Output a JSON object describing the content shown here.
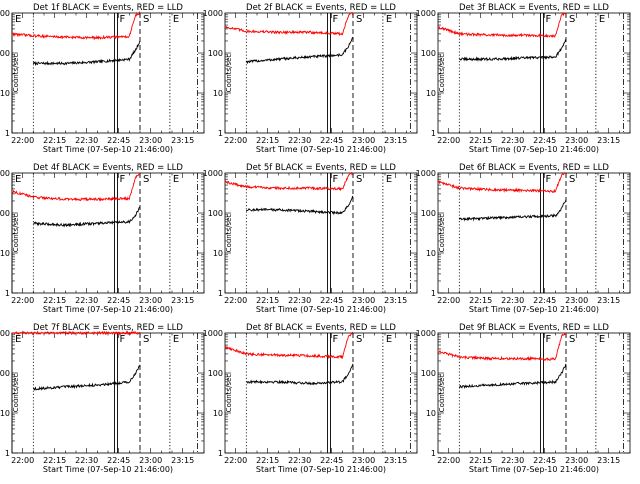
{
  "chart_data": [
    {
      "type": "line",
      "title": "Det 1f BLACK = Events, RED = LLD",
      "xlabel": "Start Time (07-Sep-10 21:46:00)",
      "ylabel": "Counts/sec",
      "xlim": [
        "21:55",
        "23:25"
      ],
      "ylim": [
        1,
        1000
      ],
      "yscale": "log",
      "xticks": [
        "22:00",
        "22:15",
        "22:30",
        "22:45",
        "23:00",
        "23:15"
      ],
      "yticks": [
        "1",
        "10",
        "100",
        "1000"
      ],
      "markers": [
        {
          "label": "E",
          "time": "21:55",
          "style": "solid"
        },
        {
          "label": "F",
          "time": "22:44",
          "style": "solid"
        },
        {
          "label": "S",
          "time": "22:55",
          "style": "dashed"
        },
        {
          "label": "E",
          "time": "23:09",
          "style": "dotted"
        }
      ],
      "dotted_lines": [
        "22:05"
      ],
      "dashdot_lines": [
        "23:22"
      ],
      "series": [
        {
          "color": "#000000",
          "x": [
            "22:05",
            "22:20",
            "22:35",
            "22:50",
            "22:53",
            "22:55"
          ],
          "y": [
            55,
            55,
            60,
            70,
            120,
            200
          ]
        },
        {
          "color": "#ff0000",
          "x": [
            "21:55",
            "22:05",
            "22:20",
            "22:35",
            "22:50",
            "22:53",
            "22:55"
          ],
          "y": [
            300,
            270,
            250,
            240,
            260,
            900,
            1000
          ]
        }
      ]
    },
    {
      "type": "line",
      "title": "Det 2f BLACK = Events, RED = LLD",
      "xlabel": "Start Time (07-Sep-10 21:46:00)",
      "ylabel": "Counts/sec",
      "xlim": [
        "21:55",
        "23:25"
      ],
      "ylim": [
        1,
        1000
      ],
      "yscale": "log",
      "xticks": [
        "22:00",
        "22:15",
        "22:30",
        "22:45",
        "23:00",
        "23:15"
      ],
      "yticks": [
        "1",
        "10",
        "100",
        "1000"
      ],
      "markers": [
        {
          "label": "F",
          "time": "22:44",
          "style": "solid"
        },
        {
          "label": "S",
          "time": "22:55",
          "style": "dashed"
        },
        {
          "label": "E",
          "time": "23:09",
          "style": "dotted"
        }
      ],
      "dotted_lines": [
        "22:05"
      ],
      "dashdot_lines": [
        "23:22"
      ],
      "series": [
        {
          "color": "#000000",
          "x": [
            "22:05",
            "22:20",
            "22:35",
            "22:50",
            "22:53",
            "22:55"
          ],
          "y": [
            60,
            70,
            80,
            90,
            150,
            250
          ]
        },
        {
          "color": "#ff0000",
          "x": [
            "21:55",
            "22:05",
            "22:20",
            "22:35",
            "22:50",
            "22:53",
            "22:55"
          ],
          "y": [
            450,
            350,
            330,
            330,
            300,
            900,
            1000
          ]
        }
      ]
    },
    {
      "type": "line",
      "title": "Det 3f BLACK = Events, RED = LLD",
      "xlabel": "Start Time (07-Sep-10 21:46:00)",
      "ylabel": "Counts/sec",
      "xlim": [
        "21:55",
        "23:25"
      ],
      "ylim": [
        1,
        1000
      ],
      "yscale": "log",
      "xticks": [
        "22:00",
        "22:15",
        "22:30",
        "22:45",
        "23:00",
        "23:15"
      ],
      "yticks": [
        "1",
        "10",
        "100",
        "1000"
      ],
      "markers": [
        {
          "label": "F",
          "time": "22:44",
          "style": "solid"
        },
        {
          "label": "S",
          "time": "22:55",
          "style": "dashed"
        },
        {
          "label": "E",
          "time": "23:09",
          "style": "dotted"
        }
      ],
      "dotted_lines": [
        "22:05"
      ],
      "dashdot_lines": [
        "23:22"
      ],
      "series": [
        {
          "color": "#000000",
          "x": [
            "22:05",
            "22:20",
            "22:35",
            "22:50",
            "22:53",
            "22:55"
          ],
          "y": [
            70,
            70,
            75,
            80,
            130,
            220
          ]
        },
        {
          "color": "#ff0000",
          "x": [
            "21:55",
            "22:05",
            "22:20",
            "22:35",
            "22:50",
            "22:53",
            "22:55"
          ],
          "y": [
            450,
            300,
            280,
            280,
            270,
            900,
            1000
          ]
        }
      ]
    },
    {
      "type": "line",
      "title": "Det 4f BLACK = Events, RED = LLD",
      "xlabel": "Start Time (07-Sep-10 21:46:00)",
      "ylabel": "Counts/sec",
      "xlim": [
        "21:55",
        "23:25"
      ],
      "ylim": [
        1,
        1000
      ],
      "yscale": "log",
      "xticks": [
        "22:00",
        "22:15",
        "22:30",
        "22:45",
        "23:00",
        "23:15"
      ],
      "yticks": [
        "1",
        "10",
        "100",
        "1000"
      ],
      "markers": [
        {
          "label": "E",
          "time": "21:55",
          "style": "solid"
        },
        {
          "label": "F",
          "time": "22:44",
          "style": "solid"
        },
        {
          "label": "S",
          "time": "22:55",
          "style": "dashed"
        },
        {
          "label": "E",
          "time": "23:09",
          "style": "dotted"
        }
      ],
      "dotted_lines": [
        "22:05"
      ],
      "dashdot_lines": [
        "23:22"
      ],
      "series": [
        {
          "color": "#000000",
          "x": [
            "22:05",
            "22:20",
            "22:35",
            "22:50",
            "22:53",
            "22:55"
          ],
          "y": [
            55,
            50,
            55,
            60,
            90,
            140
          ]
        },
        {
          "color": "#ff0000",
          "x": [
            "21:55",
            "22:05",
            "22:20",
            "22:35",
            "22:50",
            "22:53",
            "22:55"
          ],
          "y": [
            350,
            250,
            220,
            220,
            230,
            800,
            1000
          ]
        }
      ]
    },
    {
      "type": "line",
      "title": "Det 5f BLACK = Events, RED = LLD",
      "xlabel": "Start Time (07-Sep-10 21:46:00)",
      "ylabel": "Counts/sec",
      "xlim": [
        "21:55",
        "23:25"
      ],
      "ylim": [
        1,
        1000
      ],
      "yscale": "log",
      "xticks": [
        "22:00",
        "22:15",
        "22:30",
        "22:45",
        "23:00",
        "23:15"
      ],
      "yticks": [
        "1",
        "10",
        "100",
        "1000"
      ],
      "markers": [
        {
          "label": "F",
          "time": "22:44",
          "style": "solid"
        },
        {
          "label": "S",
          "time": "22:55",
          "style": "dashed"
        },
        {
          "label": "E",
          "time": "23:09",
          "style": "dotted"
        }
      ],
      "dotted_lines": [
        "22:05"
      ],
      "dashdot_lines": [
        "23:22"
      ],
      "series": [
        {
          "color": "#000000",
          "x": [
            "22:05",
            "22:20",
            "22:35",
            "22:50",
            "22:53",
            "22:55"
          ],
          "y": [
            120,
            120,
            110,
            100,
            160,
            260
          ]
        },
        {
          "color": "#ff0000",
          "x": [
            "21:55",
            "22:05",
            "22:20",
            "22:35",
            "22:50",
            "22:53",
            "22:55"
          ],
          "y": [
            600,
            450,
            420,
            420,
            400,
            900,
            1000
          ]
        }
      ]
    },
    {
      "type": "line",
      "title": "Det 6f BLACK = Events, RED = LLD",
      "xlabel": "Start Time (07-Sep-10 21:46:00)",
      "ylabel": "Counts/sec",
      "xlim": [
        "21:55",
        "23:25"
      ],
      "ylim": [
        1,
        1000
      ],
      "yscale": "log",
      "xticks": [
        "22:00",
        "22:15",
        "22:30",
        "22:45",
        "23:00",
        "23:15"
      ],
      "yticks": [
        "1",
        "10",
        "100",
        "1000"
      ],
      "markers": [
        {
          "label": "F",
          "time": "22:44",
          "style": "solid"
        },
        {
          "label": "S",
          "time": "22:55",
          "style": "dashed"
        },
        {
          "label": "E",
          "time": "23:09",
          "style": "dotted"
        }
      ],
      "dotted_lines": [
        "22:05"
      ],
      "dashdot_lines": [
        "23:22"
      ],
      "series": [
        {
          "color": "#000000",
          "x": [
            "22:05",
            "22:20",
            "22:35",
            "22:50",
            "22:53",
            "22:55"
          ],
          "y": [
            70,
            75,
            80,
            85,
            130,
            220
          ]
        },
        {
          "color": "#ff0000",
          "x": [
            "21:55",
            "22:05",
            "22:20",
            "22:35",
            "22:50",
            "22:53",
            "22:55"
          ],
          "y": [
            600,
            420,
            380,
            370,
            350,
            900,
            1000
          ]
        }
      ]
    },
    {
      "type": "line",
      "title": "Det 7f BLACK = Events, RED = LLD",
      "xlabel": "Start Time (07-Sep-10 21:46:00)",
      "ylabel": "Counts/sec",
      "xlim": [
        "21:55",
        "23:25"
      ],
      "ylim": [
        1,
        1000
      ],
      "yscale": "log",
      "xticks": [
        "22:00",
        "22:15",
        "22:30",
        "22:45",
        "23:00",
        "23:15"
      ],
      "yticks": [
        "1",
        "10",
        "100",
        "1000"
      ],
      "markers": [
        {
          "label": "E",
          "time": "21:55",
          "style": "solid"
        },
        {
          "label": "F",
          "time": "22:44",
          "style": "solid"
        },
        {
          "label": "S",
          "time": "22:55",
          "style": "dashed"
        },
        {
          "label": "E",
          "time": "23:09",
          "style": "dotted"
        }
      ],
      "dotted_lines": [
        "22:05"
      ],
      "dashdot_lines": [
        "23:22"
      ],
      "series": [
        {
          "color": "#000000",
          "x": [
            "22:05",
            "22:20",
            "22:35",
            "22:50",
            "22:53",
            "22:55"
          ],
          "y": [
            40,
            45,
            50,
            60,
            100,
            160
          ]
        },
        {
          "color": "#ff0000",
          "x": [
            "21:55",
            "22:05",
            "22:20",
            "22:35",
            "22:50",
            "22:53",
            "22:55"
          ],
          "y": [
            1000,
            1000,
            1000,
            1000,
            1000,
            1000,
            1000
          ]
        }
      ]
    },
    {
      "type": "line",
      "title": "Det 8f BLACK = Events, RED = LLD",
      "xlabel": "Start Time (07-Sep-10 21:46:00)",
      "ylabel": "Counts/sec",
      "xlim": [
        "21:55",
        "23:25"
      ],
      "ylim": [
        1,
        1000
      ],
      "yscale": "log",
      "xticks": [
        "22:00",
        "22:15",
        "22:30",
        "22:45",
        "23:00",
        "23:15"
      ],
      "yticks": [
        "1",
        "10",
        "100",
        "1000"
      ],
      "markers": [
        {
          "label": "F",
          "time": "22:44",
          "style": "solid"
        },
        {
          "label": "S",
          "time": "22:55",
          "style": "dashed"
        },
        {
          "label": "E",
          "time": "23:09",
          "style": "dotted"
        }
      ],
      "dotted_lines": [
        "22:05"
      ],
      "dashdot_lines": [
        "23:22"
      ],
      "series": [
        {
          "color": "#000000",
          "x": [
            "22:05",
            "22:20",
            "22:35",
            "22:50",
            "22:53",
            "22:55"
          ],
          "y": [
            60,
            60,
            55,
            60,
            100,
            170
          ]
        },
        {
          "color": "#ff0000",
          "x": [
            "21:55",
            "22:05",
            "22:20",
            "22:35",
            "22:50",
            "22:53",
            "22:55"
          ],
          "y": [
            450,
            300,
            280,
            270,
            250,
            850,
            1000
          ]
        }
      ]
    },
    {
      "type": "line",
      "title": "Det 9f BLACK = Events, RED = LLD",
      "xlabel": "Start Time (07-Sep-10 21:46:00)",
      "ylabel": "Counts/sec",
      "xlim": [
        "21:55",
        "23:25"
      ],
      "ylim": [
        1,
        1000
      ],
      "yscale": "log",
      "xticks": [
        "22:00",
        "22:15",
        "22:30",
        "22:45",
        "23:00",
        "23:15"
      ],
      "yticks": [
        "1",
        "10",
        "100",
        "1000"
      ],
      "markers": [
        {
          "label": "F",
          "time": "22:44",
          "style": "solid"
        },
        {
          "label": "S",
          "time": "22:55",
          "style": "dashed"
        },
        {
          "label": "E",
          "time": "23:09",
          "style": "dotted"
        }
      ],
      "dotted_lines": [
        "22:05"
      ],
      "dashdot_lines": [
        "23:22"
      ],
      "series": [
        {
          "color": "#000000",
          "x": [
            "22:05",
            "22:20",
            "22:35",
            "22:50",
            "22:53",
            "22:55"
          ],
          "y": [
            45,
            50,
            55,
            60,
            100,
            170
          ]
        },
        {
          "color": "#ff0000",
          "x": [
            "21:55",
            "22:05",
            "22:20",
            "22:35",
            "22:50",
            "22:53",
            "22:55"
          ],
          "y": [
            350,
            250,
            230,
            230,
            220,
            850,
            1000
          ]
        }
      ]
    }
  ]
}
